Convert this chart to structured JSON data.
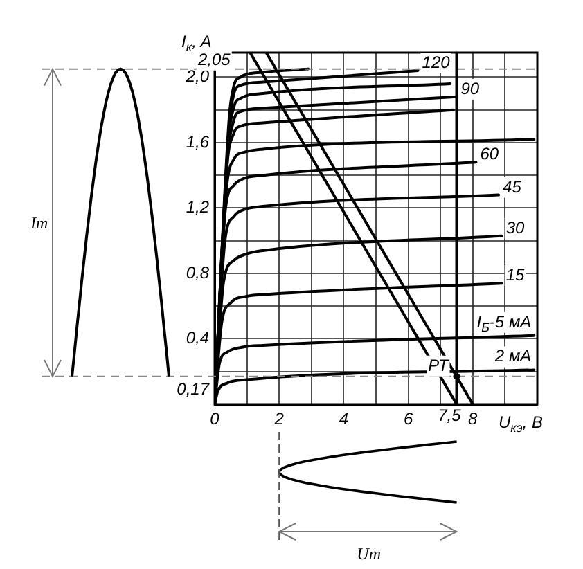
{
  "chart_data": {
    "type": "line",
    "xlabel": "U$_{кэ}$, В",
    "ylabel": "I$_{к}$, A",
    "xlim": [
      0,
      10
    ],
    "ylim": [
      0,
      2.15
    ],
    "xticks": [
      0,
      {
        "value": 1,
        "label": null
      },
      2,
      {
        "value": 3,
        "label": null
      },
      4,
      {
        "value": 5,
        "label": null
      },
      6,
      {
        "value": 7,
        "label": null
      },
      8,
      {
        "value": 9,
        "label": null
      },
      {
        "value": 10,
        "label": null
      }
    ],
    "yticks": [
      {
        "value": 0,
        "label": null
      },
      {
        "value": 0.2,
        "label": null
      },
      {
        "value": 0.4,
        "label": "0,4"
      },
      {
        "value": 0.6,
        "label": null
      },
      {
        "value": 0.8,
        "label": "0,8"
      },
      {
        "value": 1.0,
        "label": null
      },
      {
        "value": 1.2,
        "label": "1,2"
      },
      {
        "value": 1.4,
        "label": null
      },
      {
        "value": 1.6,
        "label": "1,6"
      },
      {
        "value": 1.8,
        "label": null
      },
      {
        "value": 2.0,
        "label": "2,0"
      }
    ],
    "grid": true,
    "legend": false,
    "marker": "none",
    "line_style": "solid",
    "series": [
      {
        "color": "#000000",
        "x": [
          0,
          0.45,
          0.6,
          0.8,
          1.5,
          2.9
        ],
        "values": [
          0,
          1.75,
          1.95,
          2.0,
          2.03,
          2.05
        ]
      },
      {
        "name": "120",
        "color": "#000000",
        "x": [
          0,
          0.45,
          0.6,
          0.8,
          1.5,
          6.3
        ],
        "values": [
          0,
          1.7,
          1.9,
          1.95,
          1.97,
          2.04
        ]
      },
      {
        "color": "#000000",
        "x": [
          0,
          0.42,
          0.6,
          0.8,
          1.5,
          7.3
        ],
        "values": [
          0,
          1.6,
          1.82,
          1.87,
          1.9,
          1.96
        ]
      },
      {
        "name": "90",
        "color": "#000000",
        "x": [
          0,
          0.4,
          0.6,
          0.8,
          1.5,
          7.5
        ],
        "values": [
          0,
          1.5,
          1.74,
          1.79,
          1.81,
          1.88
        ]
      },
      {
        "color": "#000000",
        "x": [
          0,
          0.38,
          0.6,
          0.8,
          1.5,
          7.4
        ],
        "values": [
          0,
          1.45,
          1.66,
          1.7,
          1.72,
          1.8
        ]
      },
      {
        "color": "#000000",
        "x": [
          0,
          0.36,
          0.6,
          0.9,
          1.5,
          9.9
        ],
        "values": [
          0,
          1.3,
          1.5,
          1.54,
          1.56,
          1.62
        ]
      },
      {
        "name": "60",
        "color": "#000000",
        "x": [
          0,
          0.34,
          0.6,
          0.9,
          1.5,
          8.1
        ],
        "values": [
          0,
          1.2,
          1.34,
          1.38,
          1.4,
          1.48
        ]
      },
      {
        "name": "45",
        "color": "#000000",
        "x": [
          0,
          0.32,
          0.6,
          0.9,
          1.5,
          8.8
        ],
        "values": [
          0,
          1.0,
          1.15,
          1.19,
          1.21,
          1.28
        ]
      },
      {
        "name": "30",
        "color": "#000000",
        "x": [
          0,
          0.28,
          0.6,
          1.0,
          1.5,
          8.9
        ],
        "values": [
          0,
          0.75,
          0.88,
          0.92,
          0.94,
          1.03
        ]
      },
      {
        "name": "15",
        "color": "#000000",
        "x": [
          0,
          0.22,
          0.5,
          1.0,
          1.5,
          8.9
        ],
        "values": [
          0,
          0.5,
          0.62,
          0.66,
          0.67,
          0.74
        ]
      },
      {
        "name": "I$_{Б}$-5 мА",
        "color": "#000000",
        "x": [
          0,
          0.15,
          0.4,
          0.9,
          1.5,
          9.9
        ],
        "values": [
          0,
          0.25,
          0.32,
          0.35,
          0.36,
          0.42
        ]
      },
      {
        "name": "2 мА",
        "color": "#000000",
        "x": [
          0,
          0.1,
          0.4,
          1.0,
          9.9
        ],
        "values": [
          0,
          0.08,
          0.13,
          0.15,
          0.21
        ]
      },
      {
        "color": "#000000",
        "x": [
          1.1,
          7.5
        ],
        "values": [
          2.15,
          0
        ]
      },
      {
        "color": "#000000",
        "x": [
          1.6,
          8.0
        ],
        "values": [
          2.15,
          0
        ]
      }
    ],
    "ref_lines": [
      {
        "axis": "y",
        "value": 0.17,
        "label": "0,17",
        "line_style": "dashed",
        "color": "#888888"
      },
      {
        "axis": "y",
        "value": 2.05,
        "label": "2,05",
        "line_style": "dashed",
        "color": "#888888"
      },
      {
        "axis": "x",
        "value": 7.5,
        "label": "7,5",
        "line_style": "solid",
        "color": "#000000"
      }
    ],
    "annotations": [
      "Im",
      "Um",
      {
        "text": "РТ",
        "x": 7.5,
        "y": 0.17
      }
    ]
  }
}
